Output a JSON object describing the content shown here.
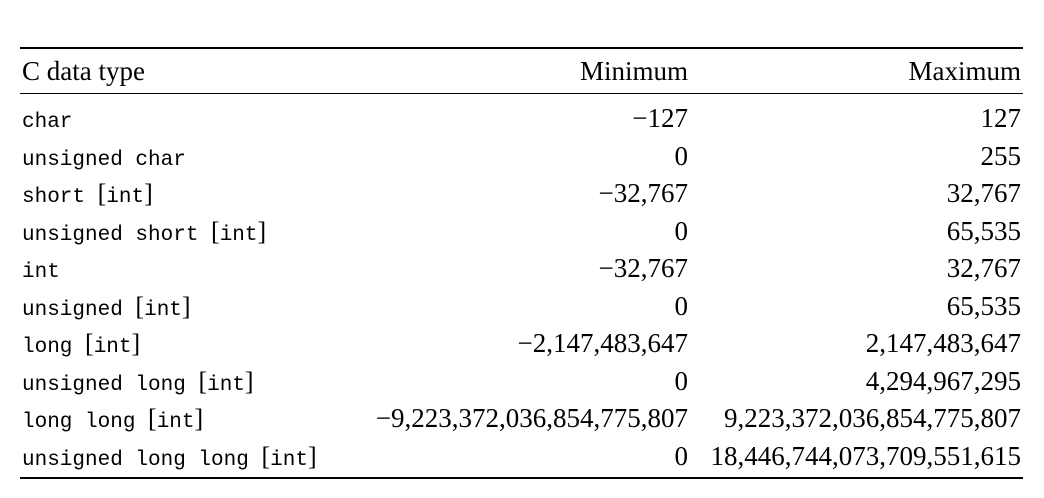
{
  "page": {
    "background_color": "#ffffff",
    "text_color": "#000000",
    "rule_color": "#000000"
  },
  "table": {
    "columns": [
      {
        "label": "C data type",
        "align": "left"
      },
      {
        "label": "Minimum",
        "align": "right"
      },
      {
        "label": "Maximum",
        "align": "right"
      }
    ],
    "rows": [
      {
        "type": "char",
        "min": "−127",
        "max": "127"
      },
      {
        "type": "unsigned char",
        "min": "0",
        "max": "255"
      },
      {
        "type": "short [int]",
        "min": "−32,767",
        "max": "32,767"
      },
      {
        "type": "unsigned short [int]",
        "min": "0",
        "max": "65,535"
      },
      {
        "type": "int",
        "min": "−32,767",
        "max": "32,767"
      },
      {
        "type": "unsigned [int]",
        "min": "0",
        "max": "65,535"
      },
      {
        "type": "long [int]",
        "min": "−2,147,483,647",
        "max": "2,147,483,647"
      },
      {
        "type": "unsigned long [int]",
        "min": "0",
        "max": "4,294,967,295"
      },
      {
        "type": "long long [int]",
        "min": "−9,223,372,036,854,775,807",
        "max": "9,223,372,036,854,775,807"
      },
      {
        "type": "unsigned long long [int]",
        "min": "0",
        "max": "18,446,744,073,709,551,615"
      }
    ]
  }
}
